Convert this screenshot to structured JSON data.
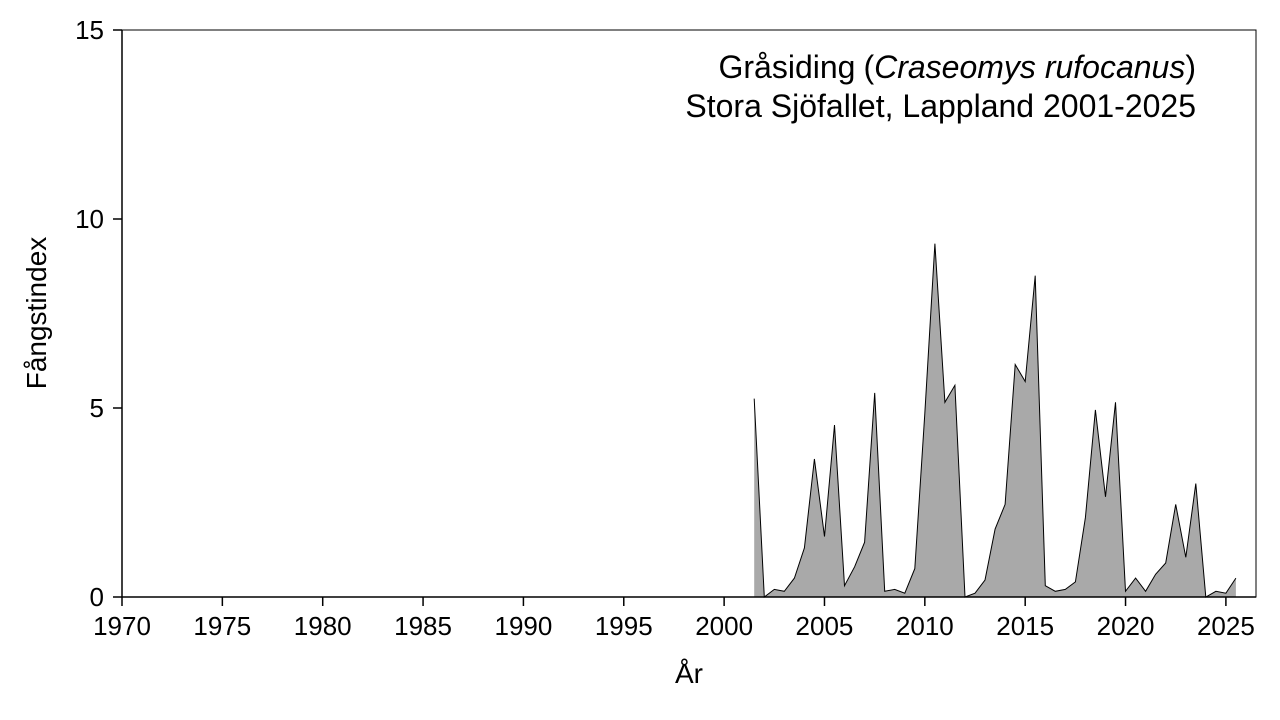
{
  "chart_data": {
    "type": "area",
    "title_species": "Gråsiding",
    "title_latin": "Craseomys rufocanus",
    "title_line2": "Stora Sjöfallet, Lappland 2001-2025",
    "xlabel": "År",
    "ylabel": "Fångstindex",
    "xlim": [
      1970,
      2026.5
    ],
    "ylim": [
      0,
      15
    ],
    "x_ticks": [
      "1970",
      "1975",
      "1980",
      "1985",
      "1990",
      "1995",
      "2000",
      "2005",
      "2010",
      "2015",
      "2020",
      "2025"
    ],
    "y_ticks": [
      "0",
      "5",
      "10",
      "15"
    ],
    "grid": false,
    "series": [
      {
        "fill_color": "#a9a9a9",
        "line_color": "#000000",
        "x": [
          2001.5,
          2002.0,
          2002.5,
          2003.0,
          2003.5,
          2004.0,
          2004.5,
          2005.0,
          2005.5,
          2006.0,
          2006.5,
          2007.0,
          2007.5,
          2008.0,
          2008.5,
          2009.0,
          2009.5,
          2010.0,
          2010.5,
          2011.0,
          2011.5,
          2012.0,
          2012.5,
          2013.0,
          2013.5,
          2014.0,
          2014.5,
          2015.0,
          2015.5,
          2016.0,
          2016.5,
          2017.0,
          2017.5,
          2018.0,
          2018.5,
          2019.0,
          2019.5,
          2020.0,
          2020.5,
          2021.0,
          2021.5,
          2022.0,
          2022.5,
          2023.0,
          2023.5,
          2024.0,
          2024.5,
          2025.0,
          2025.5
        ],
        "values": [
          5.25,
          0.0,
          0.2,
          0.15,
          0.5,
          1.3,
          3.65,
          1.6,
          4.55,
          0.3,
          0.8,
          1.45,
          5.4,
          0.15,
          0.2,
          0.1,
          0.75,
          4.85,
          9.35,
          5.15,
          5.6,
          0.0,
          0.1,
          0.45,
          1.8,
          2.45,
          6.15,
          5.7,
          8.5,
          0.3,
          0.15,
          0.2,
          0.4,
          2.1,
          4.95,
          2.65,
          5.15,
          0.15,
          0.5,
          0.15,
          0.6,
          0.9,
          2.45,
          1.05,
          3.0,
          0.0,
          0.15,
          0.1,
          0.5
        ]
      }
    ]
  }
}
